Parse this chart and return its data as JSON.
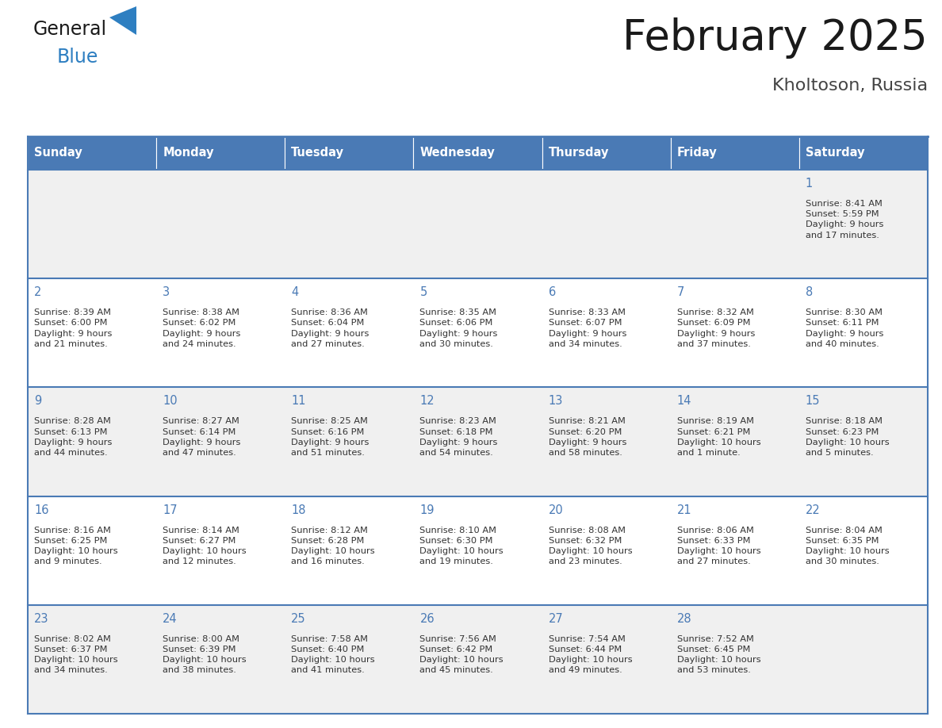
{
  "title": "February 2025",
  "subtitle": "Kholtoson, Russia",
  "days_of_week": [
    "Sunday",
    "Monday",
    "Tuesday",
    "Wednesday",
    "Thursday",
    "Friday",
    "Saturday"
  ],
  "header_bg": "#4a7ab5",
  "header_text": "#ffffff",
  "row_bg_odd": "#f0f0f0",
  "row_bg_even": "#ffffff",
  "border_color": "#4a7ab5",
  "day_number_color": "#4a7ab5",
  "text_color": "#333333",
  "logo_general_color": "#222222",
  "logo_blue_color": "#2e7fc1",
  "calendar_data": [
    {
      "day": 1,
      "col": 6,
      "row": 0,
      "sunrise": "8:41 AM",
      "sunset": "5:59 PM",
      "daylight": "9 hours\nand 17 minutes."
    },
    {
      "day": 2,
      "col": 0,
      "row": 1,
      "sunrise": "8:39 AM",
      "sunset": "6:00 PM",
      "daylight": "9 hours\nand 21 minutes."
    },
    {
      "day": 3,
      "col": 1,
      "row": 1,
      "sunrise": "8:38 AM",
      "sunset": "6:02 PM",
      "daylight": "9 hours\nand 24 minutes."
    },
    {
      "day": 4,
      "col": 2,
      "row": 1,
      "sunrise": "8:36 AM",
      "sunset": "6:04 PM",
      "daylight": "9 hours\nand 27 minutes."
    },
    {
      "day": 5,
      "col": 3,
      "row": 1,
      "sunrise": "8:35 AM",
      "sunset": "6:06 PM",
      "daylight": "9 hours\nand 30 minutes."
    },
    {
      "day": 6,
      "col": 4,
      "row": 1,
      "sunrise": "8:33 AM",
      "sunset": "6:07 PM",
      "daylight": "9 hours\nand 34 minutes."
    },
    {
      "day": 7,
      "col": 5,
      "row": 1,
      "sunrise": "8:32 AM",
      "sunset": "6:09 PM",
      "daylight": "9 hours\nand 37 minutes."
    },
    {
      "day": 8,
      "col": 6,
      "row": 1,
      "sunrise": "8:30 AM",
      "sunset": "6:11 PM",
      "daylight": "9 hours\nand 40 minutes."
    },
    {
      "day": 9,
      "col": 0,
      "row": 2,
      "sunrise": "8:28 AM",
      "sunset": "6:13 PM",
      "daylight": "9 hours\nand 44 minutes."
    },
    {
      "day": 10,
      "col": 1,
      "row": 2,
      "sunrise": "8:27 AM",
      "sunset": "6:14 PM",
      "daylight": "9 hours\nand 47 minutes."
    },
    {
      "day": 11,
      "col": 2,
      "row": 2,
      "sunrise": "8:25 AM",
      "sunset": "6:16 PM",
      "daylight": "9 hours\nand 51 minutes."
    },
    {
      "day": 12,
      "col": 3,
      "row": 2,
      "sunrise": "8:23 AM",
      "sunset": "6:18 PM",
      "daylight": "9 hours\nand 54 minutes."
    },
    {
      "day": 13,
      "col": 4,
      "row": 2,
      "sunrise": "8:21 AM",
      "sunset": "6:20 PM",
      "daylight": "9 hours\nand 58 minutes."
    },
    {
      "day": 14,
      "col": 5,
      "row": 2,
      "sunrise": "8:19 AM",
      "sunset": "6:21 PM",
      "daylight": "10 hours\nand 1 minute."
    },
    {
      "day": 15,
      "col": 6,
      "row": 2,
      "sunrise": "8:18 AM",
      "sunset": "6:23 PM",
      "daylight": "10 hours\nand 5 minutes."
    },
    {
      "day": 16,
      "col": 0,
      "row": 3,
      "sunrise": "8:16 AM",
      "sunset": "6:25 PM",
      "daylight": "10 hours\nand 9 minutes."
    },
    {
      "day": 17,
      "col": 1,
      "row": 3,
      "sunrise": "8:14 AM",
      "sunset": "6:27 PM",
      "daylight": "10 hours\nand 12 minutes."
    },
    {
      "day": 18,
      "col": 2,
      "row": 3,
      "sunrise": "8:12 AM",
      "sunset": "6:28 PM",
      "daylight": "10 hours\nand 16 minutes."
    },
    {
      "day": 19,
      "col": 3,
      "row": 3,
      "sunrise": "8:10 AM",
      "sunset": "6:30 PM",
      "daylight": "10 hours\nand 19 minutes."
    },
    {
      "day": 20,
      "col": 4,
      "row": 3,
      "sunrise": "8:08 AM",
      "sunset": "6:32 PM",
      "daylight": "10 hours\nand 23 minutes."
    },
    {
      "day": 21,
      "col": 5,
      "row": 3,
      "sunrise": "8:06 AM",
      "sunset": "6:33 PM",
      "daylight": "10 hours\nand 27 minutes."
    },
    {
      "day": 22,
      "col": 6,
      "row": 3,
      "sunrise": "8:04 AM",
      "sunset": "6:35 PM",
      "daylight": "10 hours\nand 30 minutes."
    },
    {
      "day": 23,
      "col": 0,
      "row": 4,
      "sunrise": "8:02 AM",
      "sunset": "6:37 PM",
      "daylight": "10 hours\nand 34 minutes."
    },
    {
      "day": 24,
      "col": 1,
      "row": 4,
      "sunrise": "8:00 AM",
      "sunset": "6:39 PM",
      "daylight": "10 hours\nand 38 minutes."
    },
    {
      "day": 25,
      "col": 2,
      "row": 4,
      "sunrise": "7:58 AM",
      "sunset": "6:40 PM",
      "daylight": "10 hours\nand 41 minutes."
    },
    {
      "day": 26,
      "col": 3,
      "row": 4,
      "sunrise": "7:56 AM",
      "sunset": "6:42 PM",
      "daylight": "10 hours\nand 45 minutes."
    },
    {
      "day": 27,
      "col": 4,
      "row": 4,
      "sunrise": "7:54 AM",
      "sunset": "6:44 PM",
      "daylight": "10 hours\nand 49 minutes."
    },
    {
      "day": 28,
      "col": 5,
      "row": 4,
      "sunrise": "7:52 AM",
      "sunset": "6:45 PM",
      "daylight": "10 hours\nand 53 minutes."
    }
  ],
  "num_rows": 5,
  "num_cols": 7,
  "fig_width": 11.88,
  "fig_height": 9.18,
  "dpi": 100
}
